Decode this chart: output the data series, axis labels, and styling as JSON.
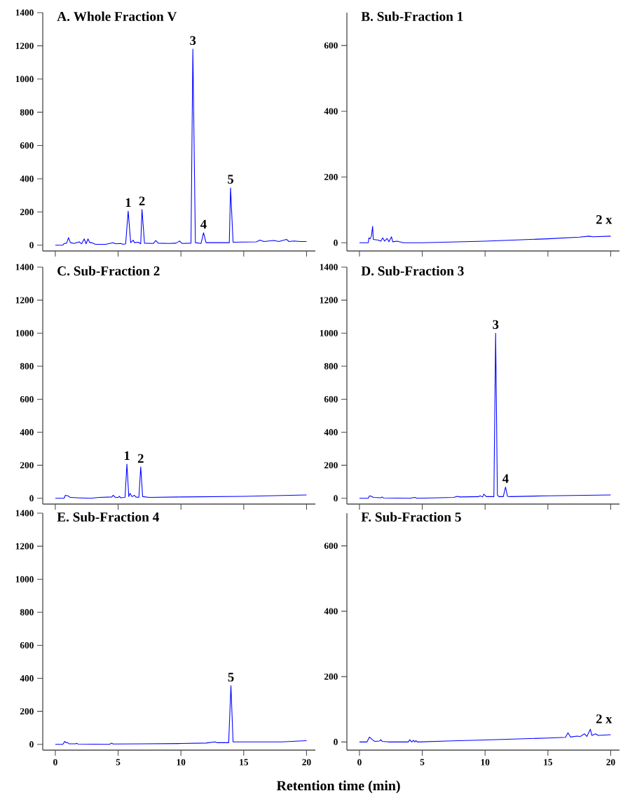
{
  "chart_data": [
    {
      "type": "line",
      "title": "A. Whole Fraction V",
      "xlim": [
        -1,
        20.7
      ],
      "xticks": [
        0,
        5,
        10,
        15,
        20
      ],
      "ylim": [
        -35,
        1400
      ],
      "yticks": [
        0,
        200,
        400,
        600,
        800,
        1000,
        1200,
        1400
      ],
      "tick_labels": "y",
      "marker": "none",
      "line_style": "solid",
      "series": [
        {
          "color": "#0000ff",
          "x": [
            0,
            0.6,
            0.7,
            0.9,
            1.05,
            1.2,
            1.5,
            1.9,
            2.1,
            2.3,
            2.45,
            2.6,
            2.75,
            2.9,
            3.2,
            4,
            4.6,
            4.8,
            5.2,
            5.4,
            5.6,
            5.8,
            6.0,
            6.2,
            6.3,
            6.6,
            6.8,
            6.9,
            7.1,
            7.8,
            8.0,
            8.2,
            9,
            9.6,
            9.9,
            10.1,
            10.8,
            10.95,
            11.15,
            11.6,
            11.8,
            12,
            13,
            13.85,
            13.95,
            14.15,
            16,
            16.3,
            16.6,
            17,
            17.4,
            17.8,
            18.4,
            18.6,
            19,
            19.5,
            20
          ],
          "values": [
            0,
            0,
            10,
            12,
            45,
            15,
            10,
            20,
            8,
            38,
            8,
            38,
            15,
            15,
            5,
            5,
            15,
            8,
            10,
            5,
            8,
            205,
            15,
            30,
            15,
            18,
            8,
            215,
            12,
            10,
            28,
            12,
            10,
            12,
            25,
            10,
            12,
            1180,
            15,
            10,
            75,
            15,
            15,
            15,
            345,
            18,
            20,
            30,
            22,
            25,
            28,
            22,
            35,
            22,
            25,
            22,
            22
          ]
        }
      ],
      "annotations": [
        {
          "text": "1",
          "x": 5.8,
          "y": 205
        },
        {
          "text": "2",
          "x": 6.9,
          "y": 215
        },
        {
          "text": "3",
          "x": 10.95,
          "y": 1180
        },
        {
          "text": "4",
          "x": 11.8,
          "y": 75
        },
        {
          "text": "5",
          "x": 13.95,
          "y": 345
        }
      ]
    },
    {
      "type": "line",
      "title": "B. Sub-Fraction 1",
      "xlim": [
        -1,
        20.7
      ],
      "xticks": [
        0,
        5,
        10,
        15,
        20
      ],
      "ylim": [
        -25,
        700
      ],
      "yticks": [
        0,
        200,
        400,
        600
      ],
      "tick_labels": "y",
      "marker": "none",
      "line_style": "solid",
      "series": [
        {
          "color": "#0000ff",
          "x": [
            0,
            0.7,
            0.75,
            0.85,
            0.95,
            1.05,
            1.1,
            1.5,
            1.7,
            1.85,
            2.0,
            2.2,
            2.35,
            2.55,
            2.65,
            3.0,
            3.5,
            5,
            7,
            10,
            15,
            17.5,
            18.3,
            18.6,
            20
          ],
          "values": [
            0,
            0,
            15,
            12,
            20,
            50,
            10,
            8,
            5,
            15,
            5,
            13,
            3,
            18,
            3,
            5,
            0,
            0,
            2,
            5,
            12,
            17,
            20,
            18,
            20
          ]
        }
      ],
      "annotations": [
        "2 x"
      ]
    },
    {
      "type": "line",
      "title": "C. Sub-Fraction 2",
      "xlim": [
        -1,
        20.7
      ],
      "xticks": [
        0,
        5,
        10,
        15,
        20
      ],
      "ylim": [
        -35,
        1400
      ],
      "yticks": [
        0,
        200,
        400,
        600,
        800,
        1000,
        1200,
        1400
      ],
      "tick_labels": "y",
      "marker": "none",
      "line_style": "solid",
      "series": [
        {
          "color": "#0000ff",
          "x": [
            0,
            0.7,
            0.8,
            1.0,
            1.2,
            2,
            2.8,
            3.5,
            4.5,
            4.6,
            4.8,
            5.0,
            5.1,
            5.2,
            5.55,
            5.7,
            5.85,
            5.95,
            6.1,
            6.3,
            6.4,
            6.65,
            6.8,
            6.95,
            7.5,
            10,
            15,
            20
          ],
          "values": [
            0,
            0,
            18,
            15,
            5,
            2,
            0,
            5,
            8,
            18,
            5,
            5,
            12,
            3,
            5,
            207,
            10,
            30,
            10,
            18,
            8,
            5,
            190,
            10,
            5,
            8,
            12,
            20
          ]
        }
      ],
      "annotations": [
        {
          "text": "1",
          "x": 5.7,
          "y": 207
        },
        {
          "text": "2",
          "x": 6.8,
          "y": 190
        }
      ]
    },
    {
      "type": "line",
      "title": "D. Sub-Fraction 3",
      "xlim": [
        -1,
        20.7
      ],
      "xticks": [
        0,
        5,
        10,
        15,
        20
      ],
      "ylim": [
        -35,
        1400
      ],
      "yticks": [
        0,
        200,
        400,
        600,
        800,
        1000,
        1200,
        1400
      ],
      "tick_labels": "y",
      "marker": "none",
      "line_style": "solid",
      "series": [
        {
          "color": "#0000ff",
          "x": [
            0,
            0.7,
            0.8,
            0.95,
            1.1,
            1.7,
            1.8,
            1.9,
            4,
            4.4,
            4.6,
            7.5,
            7.8,
            8.0,
            9.5,
            9.6,
            9.8,
            9.9,
            10.1,
            10.7,
            10.84,
            10.98,
            11.1,
            11.45,
            11.63,
            11.78,
            12,
            15,
            20
          ],
          "values": [
            0,
            0,
            15,
            12,
            5,
            3,
            8,
            2,
            0,
            5,
            0,
            5,
            12,
            8,
            10,
            15,
            8,
            25,
            10,
            10,
            1000,
            20,
            10,
            10,
            68,
            12,
            10,
            15,
            20
          ]
        }
      ],
      "annotations": [
        {
          "text": "3",
          "x": 10.84,
          "y": 1000
        },
        {
          "text": "4",
          "x": 11.63,
          "y": 68
        }
      ]
    },
    {
      "type": "line",
      "title": "E. Sub-Fraction 4",
      "xlabel": "Retention time (min)",
      "xlim": [
        -1,
        20.7
      ],
      "xticks": [
        0,
        5,
        10,
        15,
        20
      ],
      "ylim": [
        -35,
        1400
      ],
      "yticks": [
        0,
        200,
        400,
        600,
        800,
        1000,
        1200,
        1400
      ],
      "marker": "none",
      "line_style": "solid",
      "series": [
        {
          "color": "#0000ff",
          "x": [
            0,
            0.6,
            0.75,
            0.85,
            0.95,
            1.1,
            1.6,
            1.7,
            1.8,
            4.3,
            4.5,
            4.6,
            7,
            10,
            12,
            12.7,
            12.9,
            13.5,
            13.8,
            13.98,
            14.15,
            15,
            18,
            20
          ],
          "values": [
            0,
            0,
            18,
            10,
            12,
            3,
            3,
            6,
            2,
            0,
            7,
            2,
            3,
            5,
            8,
            15,
            10,
            10,
            10,
            355,
            15,
            15,
            15,
            22
          ]
        }
      ],
      "annotations": [
        {
          "text": "5",
          "x": 13.98,
          "y": 355
        }
      ]
    },
    {
      "type": "line",
      "title": "F. Sub-Fraction 5",
      "xlim": [
        -1,
        20.7
      ],
      "xticks": [
        0,
        5,
        10,
        15,
        20
      ],
      "ylim": [
        -25,
        700
      ],
      "yticks": [
        0,
        200,
        400,
        600
      ],
      "marker": "none",
      "line_style": "solid",
      "series": [
        {
          "color": "#0000ff",
          "x": [
            0,
            0.6,
            0.8,
            1.0,
            1.2,
            1.6,
            1.7,
            1.8,
            2.3,
            3.9,
            4.0,
            4.15,
            4.3,
            4.4,
            4.5,
            4.6,
            7,
            10,
            15,
            16.4,
            16.6,
            16.8,
            17.3,
            17.6,
            17.9,
            18.1,
            18.38,
            18.5,
            18.8,
            19,
            20
          ],
          "values": [
            0,
            0,
            15,
            8,
            2,
            3,
            7,
            2,
            0,
            0,
            7,
            0,
            5,
            0,
            4,
            0,
            3,
            6,
            12,
            14,
            28,
            15,
            18,
            17,
            25,
            17,
            39,
            20,
            25,
            20,
            22
          ]
        }
      ],
      "annotations": [
        "2 x"
      ]
    }
  ]
}
